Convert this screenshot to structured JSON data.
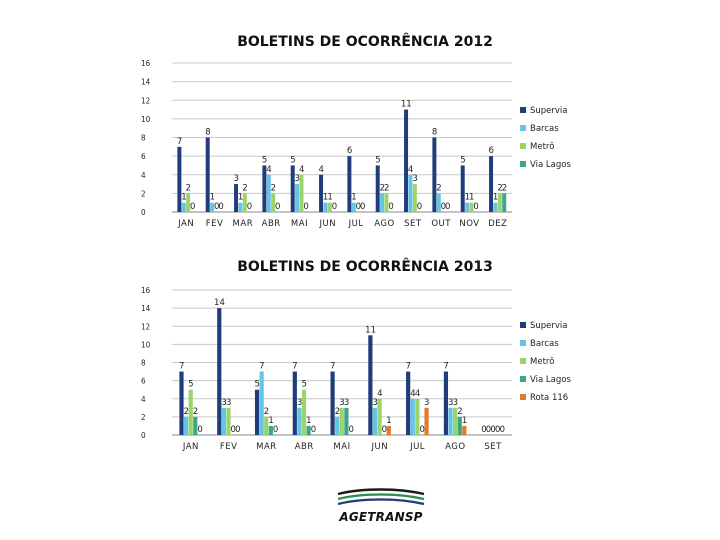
{
  "chart_data": [
    {
      "type": "bar",
      "title": "BOLETINS DE OCORRÊNCIA 2012",
      "categories": [
        "JAN",
        "FEV",
        "MAR",
        "ABR",
        "MAI",
        "JUN",
        "JUL",
        "AGO",
        "SET",
        "OUT",
        "NOV",
        "DEZ"
      ],
      "ylim": [
        0,
        16
      ],
      "yticks": [
        0,
        2,
        4,
        6,
        8,
        10,
        12,
        14,
        16
      ],
      "grid": true,
      "legend": "right",
      "series": [
        {
          "name": "Supervia",
          "color": "#1f3d7a",
          "values": [
            7,
            8,
            3,
            5,
            5,
            4,
            6,
            5,
            11,
            8,
            5,
            6
          ]
        },
        {
          "name": "Barcas",
          "color": "#63c5e6",
          "values": [
            1,
            1,
            1,
            4,
            3,
            1,
            1,
            2,
            4,
            2,
            1,
            1
          ]
        },
        {
          "name": "Metrô",
          "color": "#9bd46a",
          "values": [
            2,
            0,
            2,
            2,
            4,
            1,
            0,
            2,
            3,
            0,
            1,
            2
          ]
        },
        {
          "name": "Via Lagos",
          "color": "#3aa887",
          "values": [
            0,
            0,
            0,
            0,
            0,
            0,
            0,
            0,
            0,
            0,
            0,
            2
          ]
        }
      ]
    },
    {
      "type": "bar",
      "title": "BOLETINS DE OCORRÊNCIA 2013",
      "categories": [
        "JAN",
        "FEV",
        "MAR",
        "ABR",
        "MAI",
        "JUN",
        "JUL",
        "AGO",
        "SET"
      ],
      "ylim": [
        0,
        16
      ],
      "yticks": [
        0,
        2,
        4,
        6,
        8,
        10,
        12,
        14,
        16
      ],
      "grid": true,
      "legend": "right",
      "series": [
        {
          "name": "Supervia",
          "color": "#1f3d7a",
          "values": [
            7,
            14,
            5,
            7,
            7,
            11,
            7,
            7,
            0
          ]
        },
        {
          "name": "Barcas",
          "color": "#63c5e6",
          "values": [
            2,
            3,
            7,
            3,
            2,
            3,
            4,
            3,
            0
          ]
        },
        {
          "name": "Metrô",
          "color": "#9bd46a",
          "values": [
            5,
            3,
            2,
            5,
            3,
            4,
            4,
            3,
            0
          ]
        },
        {
          "name": "Via Lagos",
          "color": "#3aa887",
          "values": [
            2,
            0,
            1,
            1,
            3,
            0,
            0,
            2,
            0
          ]
        },
        {
          "name": "Rota 116",
          "color": "#e07a2c",
          "values": [
            0,
            0,
            0,
            0,
            0,
            1,
            3,
            1,
            0
          ]
        }
      ]
    }
  ],
  "logo": {
    "text": "AGETRANSP"
  }
}
